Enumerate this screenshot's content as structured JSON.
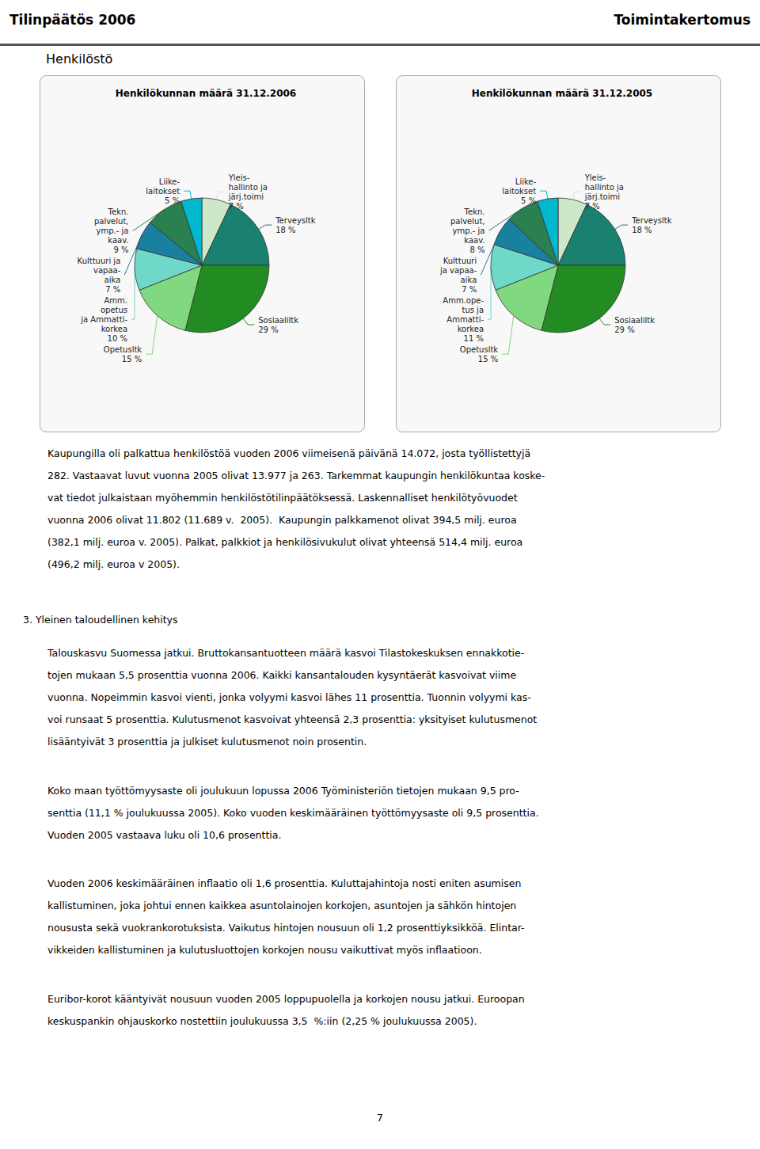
{
  "chart_data": [
    {
      "type": "pie",
      "title": "Henkilökunnan määrä 31.12.2006",
      "categories": [
        "Yleis-\nhallinto ja\njärj.toimi",
        "Terveysltk",
        "Sosiaaliltk",
        "Opetusltk",
        "Amm.\nopetus\nja Ammatti-\nkorkea",
        "Kulttuuri ja\nvapaa-\naika",
        "Tekn.\npalvelut,\nymp.- ja\nkaav.",
        "Liike-\nlaitokset"
      ],
      "values": [
        7,
        18,
        29,
        15,
        10,
        7,
        9,
        5
      ],
      "value_labels": [
        "7 %",
        "18 %",
        "29 %",
        "15 %",
        "10 %",
        "7 %",
        "9 %",
        "5 %"
      ],
      "colors": [
        "#cce8c8",
        "#1a8070",
        "#228b22",
        "#80d880",
        "#70d8c8",
        "#1a80a0",
        "#2a8050",
        "#00b8d0"
      ],
      "data_labels": true
    },
    {
      "type": "pie",
      "title": "Henkilökunnan määrä 31.12.2005",
      "categories": [
        "Yleis-\nhallinto ja\njärj.toimi",
        "Terveysltk",
        "Sosiaaliltk",
        "Opetusltk",
        "Amm.ope-\ntus ja\nAmmatti-\nkorkea",
        "Kulttuuri\nja vapaa-\naika",
        "Tekn.\npalvelut,\nymp.- ja\nkaav.",
        "Liike-\nlaitokset"
      ],
      "values": [
        7,
        18,
        29,
        15,
        11,
        7,
        8,
        5
      ],
      "value_labels": [
        "7 %",
        "18 %",
        "29 %",
        "15 %",
        "11 %",
        "7 %",
        "8 %",
        "5 %"
      ],
      "colors": [
        "#cce8c8",
        "#1a8070",
        "#228b22",
        "#80d880",
        "#70d8c8",
        "#1a80a0",
        "#2a8050",
        "#00b8d0"
      ],
      "data_labels": true
    }
  ],
  "page_text": {
    "header_left": "Tilinpäätös 2006",
    "header_right": "Toimintakertomus",
    "section_title": "Henkilöstö",
    "body_text_lines": [
      "Kaupungilla oli palkattua henkilöstöä vuoden 2006 viimeisenä päivänä 14.072, josta työllistettyjä",
      "282. Vastaavat luvut vuonna 2005 olivat 13.977 ja 263. Tarkemmat kaupungin henkilökuntaa koske-",
      "vat tiedot julkaistaan myöhemmin henkilöstötilinpäätöksessä. Laskennalliset henkilötyövuodet",
      "vuonna 2006 olivat 11.802 (11.689 v.  2005).  Kaupungin palkkamenot olivat 394,5 milj. euroa",
      "(382,1 milj. euroa v. 2005). Palkat, palkkiot ja henkilösivukulut olivat yhteensä 514,4 milj. euroa",
      "(496,2 milj. euroa v 2005)."
    ],
    "section3_title": "3. Yleinen taloudellinen kehitys",
    "para3_lines": [
      "Talouskasvu Suomessa jatkui. Bruttokansantuotteen määrä kasvoi Tilastokeskuksen ennakkotie-",
      "tojen mukaan 5,5 prosenttia vuonna 2006. Kaikki kansantalouden kysyntäerät kasvoivat viime",
      "vuonna. Nopeimmin kasvoi vienti, jonka volyymi kasvoi lähes 11 prosenttia. Tuonnin volyymi kas-",
      "voi runsaat 5 prosenttia. Kulutusmenot kasvoivat yhteensä 2,3 prosenttia: yksityiset kulutusmenot",
      "lisääntyivät 3 prosenttia ja julkiset kulutusmenot noin prosentin."
    ],
    "para4_lines": [
      "Koko maan työttömyysaste oli joulukuun lopussa 2006 Työministeriön tietojen mukaan 9,5 pro-",
      "senttia (11,1 % joulukuussa 2005). Koko vuoden keskimääräinen työttömyysaste oli 9,5 prosenttia.",
      "Vuoden 2005 vastaava luku oli 10,6 prosenttia."
    ],
    "para5_lines": [
      "Vuoden 2006 keskimääräinen inflaatio oli 1,6 prosenttia. Kuluttajahintoja nosti eniten asumisen",
      "kallistuminen, joka johtui ennen kaikkea asuntolainojen korkojen, asuntojen ja sähkön hintojen",
      "noususta sekä vuokrankorotuksista. Vaikutus hintojen nousuun oli 1,2 prosenttiyksikköä. Elintar-",
      "vikkeiden kallistuminen ja kulutusluottojen korkojen nousu vaikuttivat myös inflaatioon."
    ],
    "para6_lines": [
      "Euribor-korot kääntyivät nousuun vuoden 2005 loppupuolella ja korkojen nousu jatkui. Euroopan",
      "keskuspankin ohjauskorko nostettiin joulukuussa 3,5  %:iin (2,25 % joulukuussa 2005)."
    ],
    "page_number": "7"
  }
}
